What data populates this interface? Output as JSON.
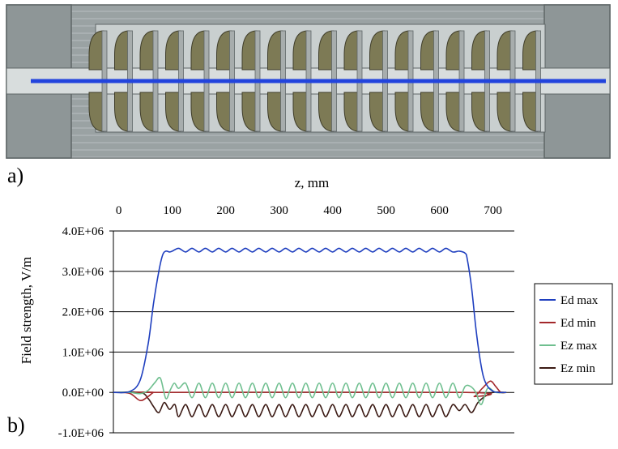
{
  "panels": {
    "a_label": "a)",
    "b_label": "b)"
  },
  "figure": {
    "colors": {
      "metal": "#9aa2a3",
      "metal_dark": "#5f6667",
      "cell": "#7d7a55",
      "cell_edge": "#3f3d2a",
      "beam_axis": "#2244dd",
      "background": "#ffffff"
    }
  },
  "chart_data": {
    "type": "line",
    "title": "",
    "xlabel": "z, mm",
    "ylabel": "Field strength, V/m",
    "xlim": [
      -10,
      740
    ],
    "ylim": [
      -1000000,
      4000000
    ],
    "x_axis_position": "top",
    "xticks": [
      0,
      100,
      200,
      300,
      400,
      500,
      600,
      700
    ],
    "xtick_labels": [
      "0",
      "100",
      "200",
      "300",
      "400",
      "500",
      "600",
      "700"
    ],
    "yticks": [
      -1000000,
      0,
      1000000,
      2000000,
      3000000,
      4000000
    ],
    "ytick_labels": [
      "-1.0E+06",
      "0.0E+00",
      "1.0E+06",
      "2.0E+06",
      "3.0E+06",
      "4.0E+06"
    ],
    "grid": "horizontal",
    "legend_position": "right",
    "series": [
      {
        "name": "Ed max",
        "color": "#1f3fbf",
        "x": [
          -10,
          20,
          40,
          55,
          65,
          75,
          82,
          88,
          95,
          100,
          112,
          125,
          137,
          150,
          162,
          175,
          187,
          200,
          212,
          225,
          237,
          250,
          262,
          275,
          287,
          300,
          312,
          325,
          337,
          350,
          362,
          375,
          387,
          400,
          412,
          425,
          437,
          450,
          462,
          475,
          487,
          500,
          512,
          525,
          537,
          550,
          562,
          575,
          587,
          600,
          612,
          625,
          637,
          648,
          652,
          660,
          668,
          675,
          682,
          690,
          700,
          710,
          725
        ],
        "y": [
          0,
          20000,
          300000,
          1200000,
          2200000,
          3000000,
          3400000,
          3500000,
          3480000,
          3500000,
          3570000,
          3480000,
          3570000,
          3480000,
          3570000,
          3480000,
          3570000,
          3480000,
          3570000,
          3480000,
          3570000,
          3480000,
          3570000,
          3480000,
          3570000,
          3480000,
          3570000,
          3480000,
          3570000,
          3480000,
          3570000,
          3480000,
          3570000,
          3480000,
          3570000,
          3480000,
          3570000,
          3480000,
          3570000,
          3480000,
          3570000,
          3480000,
          3570000,
          3480000,
          3570000,
          3480000,
          3570000,
          3480000,
          3570000,
          3480000,
          3570000,
          3480000,
          3500000,
          3450000,
          3300000,
          2600000,
          1600000,
          900000,
          400000,
          150000,
          30000,
          0,
          0
        ]
      },
      {
        "name": "Ed min",
        "color": "#a3282b",
        "x": [
          -10,
          20,
          40,
          55,
          65,
          75,
          650,
          665,
          680,
          695,
          705,
          715,
          725
        ],
        "y": [
          0,
          -20000,
          -200000,
          -100000,
          0,
          0,
          0,
          -100000,
          100000,
          280000,
          150000,
          0,
          0
        ]
      },
      {
        "name": "Ez max",
        "color": "#6fbf8f",
        "x": [
          -10,
          20,
          40,
          55,
          68,
          78,
          88,
          96,
          104,
          112,
          125,
          137,
          150,
          162,
          175,
          187,
          200,
          212,
          225,
          237,
          250,
          262,
          275,
          287,
          300,
          312,
          325,
          337,
          350,
          362,
          375,
          387,
          400,
          412,
          425,
          437,
          450,
          462,
          475,
          487,
          500,
          512,
          525,
          537,
          550,
          562,
          575,
          587,
          600,
          612,
          625,
          637,
          648,
          658,
          668,
          678,
          690,
          705,
          725
        ],
        "y": [
          0,
          0,
          -30000,
          50000,
          250000,
          350000,
          -150000,
          50000,
          230000,
          100000,
          230000,
          -130000,
          230000,
          -130000,
          230000,
          -130000,
          230000,
          -130000,
          230000,
          -130000,
          230000,
          -130000,
          230000,
          -130000,
          230000,
          -130000,
          230000,
          -130000,
          230000,
          -130000,
          230000,
          -130000,
          230000,
          -130000,
          230000,
          -130000,
          230000,
          -130000,
          230000,
          -130000,
          230000,
          -130000,
          230000,
          -130000,
          230000,
          -130000,
          230000,
          -130000,
          230000,
          -130000,
          230000,
          -130000,
          150000,
          150000,
          0,
          -300000,
          100000,
          0,
          0
        ]
      },
      {
        "name": "Ez min",
        "color": "#3b1a14",
        "x": [
          -10,
          40,
          55,
          65,
          75,
          85,
          95,
          105,
          112,
          125,
          137,
          150,
          162,
          175,
          187,
          200,
          212,
          225,
          237,
          250,
          262,
          275,
          287,
          300,
          312,
          325,
          337,
          350,
          362,
          375,
          387,
          400,
          412,
          425,
          437,
          450,
          462,
          475,
          487,
          500,
          512,
          525,
          537,
          550,
          562,
          575,
          587,
          600,
          612,
          625,
          637,
          648,
          660,
          672,
          685,
          700,
          725
        ],
        "y": [
          0,
          0,
          -150000,
          -350000,
          -500000,
          -250000,
          -420000,
          -300000,
          -600000,
          -300000,
          -600000,
          -300000,
          -600000,
          -300000,
          -600000,
          -300000,
          -600000,
          -300000,
          -600000,
          -300000,
          -600000,
          -300000,
          -600000,
          -300000,
          -600000,
          -300000,
          -600000,
          -300000,
          -600000,
          -300000,
          -600000,
          -300000,
          -600000,
          -300000,
          -600000,
          -300000,
          -600000,
          -300000,
          -600000,
          -300000,
          -600000,
          -300000,
          -600000,
          -300000,
          -600000,
          -300000,
          -600000,
          -300000,
          -600000,
          -300000,
          -450000,
          -300000,
          -500000,
          -250000,
          -100000,
          0,
          0
        ]
      }
    ]
  }
}
